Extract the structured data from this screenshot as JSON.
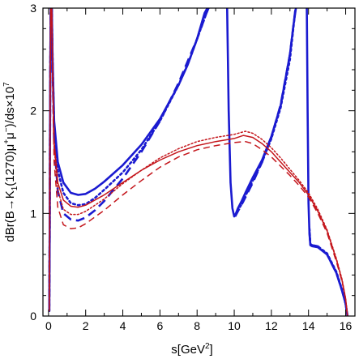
{
  "chart_data": {
    "type": "line",
    "title": "",
    "xlabel": "s[GeV",
    "xlabel_sup": "2",
    "xlabel_end": "]",
    "ylabel": {
      "main": "dBr(B→K",
      "sub": "1",
      "mid": "(1270)μ",
      "plus": "+",
      "mu": "μ",
      "minus": "−",
      "end": ")/ds×10",
      "exp": "7"
    },
    "xlim": [
      -0.3,
      16.5
    ],
    "ylim": [
      0,
      3
    ],
    "xticks": [
      0,
      2,
      4,
      6,
      8,
      10,
      12,
      14,
      16
    ],
    "yticks": [
      0,
      1,
      2,
      3
    ],
    "series": [
      {
        "color": "#1a1ad0",
        "style": "solid",
        "width": 2.6,
        "segments": [
          {
            "x": [
              0.04,
              0.06,
              0.09,
              0.12,
              0.16,
              0.22,
              0.3,
              0.5,
              0.8,
              1.2,
              1.6,
              2.0,
              2.5,
              3.0,
              4.0,
              5.0,
              6.0,
              7.0,
              7.5,
              8.0,
              8.4,
              8.7,
              9.0
            ],
            "y": [
              0.05,
              0.8,
              2.2,
              3.05,
              3.2,
              2.5,
              1.9,
              1.5,
              1.3,
              1.2,
              1.18,
              1.19,
              1.24,
              1.31,
              1.47,
              1.67,
              1.92,
              2.25,
              2.45,
              2.7,
              2.95,
              3.05,
              3.15
            ]
          },
          {
            "x": [
              9.6,
              9.7,
              9.8,
              9.9,
              10.0,
              10.05,
              10.2,
              10.4,
              10.6,
              11.0,
              11.5,
              12.0,
              12.5,
              13.0,
              13.2,
              13.4
            ],
            "y": [
              3.2,
              2.0,
              1.3,
              1.05,
              0.97,
              0.98,
              1.05,
              1.12,
              1.2,
              1.35,
              1.52,
              1.75,
              2.05,
              2.55,
              2.85,
              3.1
            ]
          },
          {
            "x": [
              13.9,
              13.95,
              14.0,
              14.05,
              14.1,
              14.2,
              14.5,
              15.0,
              15.5,
              15.8,
              16.0,
              16.1
            ],
            "y": [
              3.2,
              2.0,
              1.1,
              0.8,
              0.69,
              0.68,
              0.67,
              0.6,
              0.42,
              0.25,
              0.12,
              0.0
            ]
          }
        ]
      },
      {
        "color": "#1a1ad0",
        "style": "dotted",
        "width": 2.6,
        "segments": [
          {
            "x": [
              0.04,
              0.06,
              0.09,
              0.12,
              0.16,
              0.22,
              0.3,
              0.5,
              0.8,
              1.2,
              1.6,
              2.0,
              2.5,
              3.0,
              4.0,
              5.0,
              6.0,
              7.0,
              7.6,
              8.2,
              8.6,
              9.0
            ],
            "y": [
              0.05,
              0.8,
              2.2,
              3.05,
              3.2,
              2.5,
              1.85,
              1.42,
              1.2,
              1.1,
              1.08,
              1.09,
              1.15,
              1.23,
              1.4,
              1.62,
              1.9,
              2.25,
              2.5,
              2.8,
              3.0,
              3.15
            ]
          },
          {
            "x": [
              10.05,
              10.2,
              10.4,
              10.6,
              11.0,
              11.5,
              12.0,
              12.5,
              13.0,
              13.3
            ],
            "y": [
              0.98,
              1.03,
              1.09,
              1.17,
              1.32,
              1.5,
              1.73,
              2.03,
              2.5,
              3.0
            ]
          },
          {
            "x": [
              14.05,
              14.1,
              14.2,
              14.5,
              15.0,
              15.5,
              15.8,
              16.0,
              16.1
            ],
            "y": [
              0.85,
              0.7,
              0.69,
              0.68,
              0.61,
              0.43,
              0.26,
              0.12,
              0.0
            ]
          }
        ]
      },
      {
        "color": "#1a1ad0",
        "style": "dashed",
        "width": 2.6,
        "segments": [
          {
            "x": [
              0.04,
              0.06,
              0.09,
              0.12,
              0.16,
              0.22,
              0.3,
              0.5,
              0.8,
              1.2,
              1.6,
              2.0,
              2.5,
              3.0,
              4.0,
              5.0,
              6.0,
              7.0,
              8.0,
              8.5,
              8.9,
              9.1
            ],
            "y": [
              0.05,
              0.8,
              2.2,
              3.05,
              3.2,
              2.4,
              1.7,
              1.22,
              1.0,
              0.94,
              0.93,
              0.96,
              1.03,
              1.12,
              1.34,
              1.6,
              1.9,
              2.27,
              2.7,
              2.95,
              3.12,
              3.2
            ]
          },
          {
            "x": [
              10.05,
              10.2,
              10.5,
              11.0,
              11.5,
              12.0,
              12.5,
              13.0,
              13.3
            ],
            "y": [
              0.97,
              1.02,
              1.12,
              1.3,
              1.5,
              1.74,
              2.06,
              2.55,
              3.0
            ]
          },
          {
            "x": [
              14.05,
              14.1,
              14.2,
              14.5,
              15.0,
              15.5,
              15.8,
              16.0,
              16.1
            ],
            "y": [
              0.82,
              0.7,
              0.69,
              0.68,
              0.6,
              0.42,
              0.25,
              0.12,
              0.0
            ]
          }
        ]
      },
      {
        "color": "#c4161c",
        "style": "solid",
        "width": 1.5,
        "segments": [
          {
            "x": [
              0.04,
              0.06,
              0.09,
              0.12,
              0.16,
              0.22,
              0.3,
              0.5,
              0.8,
              1.2,
              1.6,
              2.0,
              3.0,
              4.0,
              5.0,
              6.0,
              7.0,
              8.0,
              9.0,
              10.0,
              10.5,
              11.0,
              11.5,
              12.0,
              12.5,
              13.0,
              13.5,
              14.0,
              14.5,
              15.0,
              15.5,
              15.8,
              16.0,
              16.1
            ],
            "y": [
              0.05,
              0.8,
              2.2,
              3.05,
              3.2,
              2.4,
              1.7,
              1.3,
              1.13,
              1.07,
              1.06,
              1.08,
              1.18,
              1.3,
              1.42,
              1.52,
              1.6,
              1.66,
              1.7,
              1.73,
              1.76,
              1.74,
              1.68,
              1.6,
              1.5,
              1.4,
              1.3,
              1.18,
              1.02,
              0.83,
              0.55,
              0.35,
              0.17,
              0.0
            ]
          }
        ]
      },
      {
        "color": "#c4161c",
        "style": "dotted",
        "width": 1.5,
        "segments": [
          {
            "x": [
              0.04,
              0.06,
              0.09,
              0.12,
              0.16,
              0.22,
              0.3,
              0.5,
              0.8,
              1.2,
              1.6,
              2.0,
              3.0,
              4.0,
              5.0,
              6.0,
              7.0,
              8.0,
              9.0,
              10.0,
              10.6,
              11.0,
              11.5,
              12.0,
              12.5,
              13.0,
              13.5,
              14.0,
              14.5,
              15.0,
              15.5,
              15.8,
              16.0,
              16.1
            ],
            "y": [
              0.05,
              0.8,
              2.2,
              3.05,
              3.2,
              2.4,
              1.65,
              1.23,
              1.04,
              0.99,
              0.99,
              1.02,
              1.14,
              1.29,
              1.42,
              1.54,
              1.63,
              1.7,
              1.74,
              1.77,
              1.8,
              1.78,
              1.72,
              1.64,
              1.54,
              1.43,
              1.32,
              1.2,
              1.04,
              0.84,
              0.56,
              0.36,
              0.17,
              0.0
            ]
          }
        ]
      },
      {
        "color": "#c4161c",
        "style": "dashed",
        "width": 1.5,
        "segments": [
          {
            "x": [
              0.04,
              0.06,
              0.09,
              0.12,
              0.16,
              0.22,
              0.3,
              0.5,
              0.8,
              1.2,
              1.6,
              2.0,
              3.0,
              4.0,
              5.0,
              6.0,
              7.0,
              8.0,
              9.0,
              10.0,
              10.6,
              11.0,
              11.5,
              12.0,
              12.5,
              13.0,
              13.5,
              14.0,
              14.5,
              15.0,
              15.5,
              15.8,
              16.0,
              16.1
            ],
            "y": [
              0.05,
              0.8,
              2.2,
              3.05,
              3.2,
              2.3,
              1.5,
              1.06,
              0.89,
              0.85,
              0.86,
              0.9,
              1.03,
              1.18,
              1.32,
              1.45,
              1.55,
              1.62,
              1.66,
              1.69,
              1.7,
              1.68,
              1.62,
              1.55,
              1.46,
              1.37,
              1.27,
              1.16,
              1.0,
              0.81,
              0.53,
              0.34,
              0.16,
              0.0
            ]
          }
        ]
      }
    ]
  }
}
